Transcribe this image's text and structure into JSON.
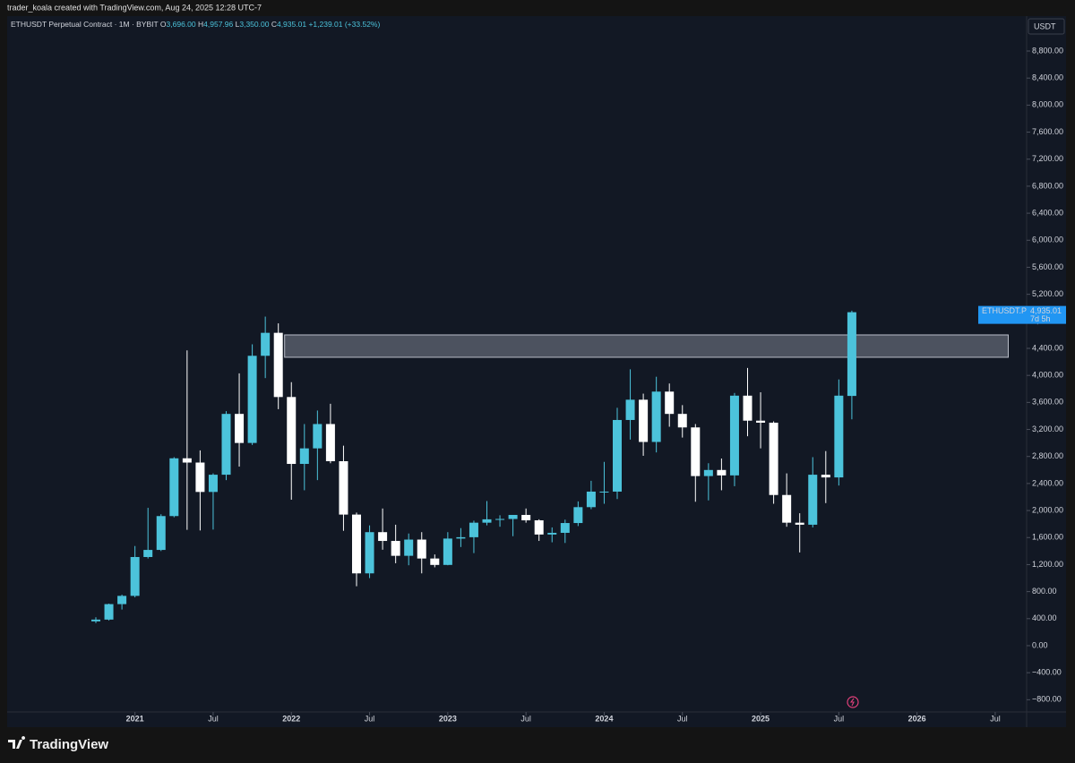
{
  "header": {
    "credit": "trader_koala created with TradingView.com, Aug 24, 2025 12:28 UTC-7"
  },
  "footer": {
    "brand": "TradingView"
  },
  "chart_data": {
    "type": "candlestick",
    "legend": {
      "symbol": "ETHUSDT Perpetual Contract · 1M · BYBIT",
      "o_key": "O",
      "o": "3,696.00",
      "h_key": "H",
      "h": "4,957.96",
      "l_key": "L",
      "l": "3,350.00",
      "c_key": "C",
      "c": "4,935.01",
      "change": "+1,239.01 (+33.52%)"
    },
    "y_unit": "USDT",
    "up_color": "#4cc3db",
    "down_color": "#ffffff",
    "x": [
      "2020-10",
      "2020-11",
      "2020-12",
      "2021-01",
      "2021-02",
      "2021-03",
      "2021-04",
      "2021-05",
      "2021-06",
      "2021-07",
      "2021-08",
      "2021-09",
      "2021-10",
      "2021-11",
      "2021-12",
      "2022-01",
      "2022-02",
      "2022-03",
      "2022-04",
      "2022-05",
      "2022-06",
      "2022-07",
      "2022-08",
      "2022-09",
      "2022-10",
      "2022-11",
      "2022-12",
      "2023-01",
      "2023-02",
      "2023-03",
      "2023-04",
      "2023-05",
      "2023-06",
      "2023-07",
      "2023-08",
      "2023-09",
      "2023-10",
      "2023-11",
      "2023-12",
      "2024-01",
      "2024-02",
      "2024-03",
      "2024-04",
      "2024-05",
      "2024-06",
      "2024-07",
      "2024-08",
      "2024-09",
      "2024-10",
      "2024-11",
      "2024-12",
      "2025-01",
      "2025-02",
      "2025-03",
      "2025-04",
      "2025-05",
      "2025-06",
      "2025-07",
      "2025-08"
    ],
    "open": [
      360,
      386,
      615,
      737,
      1312,
      1417,
      1918,
      2773,
      2710,
      2275,
      2530,
      3430,
      3000,
      4290,
      4630,
      3680,
      2690,
      2920,
      3280,
      2730,
      1940,
      1070,
      1680,
      1550,
      1330,
      1570,
      1290,
      1195,
      1585,
      1605,
      1820,
      1870,
      1875,
      1935,
      1855,
      1645,
      1670,
      1815,
      2050,
      2280,
      2280,
      3340,
      3640,
      3015,
      3760,
      3430,
      3230,
      2510,
      2600,
      2520,
      3700,
      3330,
      3300,
      2230,
      1820,
      1790,
      2530,
      2490,
      3696
    ],
    "high": [
      420,
      622,
      755,
      1475,
      2040,
      1945,
      2790,
      4370,
      2890,
      2550,
      3470,
      4030,
      4460,
      4870,
      4770,
      3900,
      3280,
      3480,
      3580,
      2960,
      1970,
      1780,
      2030,
      1790,
      1660,
      1680,
      1350,
      1680,
      1740,
      1850,
      2140,
      1930,
      1935,
      2030,
      1870,
      1750,
      1865,
      2135,
      2440,
      2720,
      3520,
      4090,
      3730,
      3980,
      3880,
      3560,
      3280,
      2700,
      2770,
      3740,
      4110,
      3750,
      3320,
      2550,
      1960,
      2790,
      2880,
      3940,
      4957.96
    ],
    "low": [
      335,
      373,
      535,
      715,
      1290,
      1400,
      1900,
      1715,
      1705,
      1718,
      2450,
      2650,
      2970,
      3960,
      3500,
      2160,
      2300,
      2450,
      2700,
      1700,
      880,
      1000,
      1420,
      1220,
      1190,
      1070,
      1160,
      1190,
      1460,
      1370,
      1780,
      1760,
      1620,
      1820,
      1550,
      1530,
      1520,
      1770,
      2020,
      2100,
      2170,
      3050,
      2810,
      2860,
      3240,
      3080,
      2130,
      2150,
      2300,
      2360,
      3100,
      2920,
      2100,
      1760,
      1380,
      1750,
      2110,
      2370,
      3350
    ],
    "close": [
      386,
      615,
      737,
      1312,
      1417,
      1918,
      2773,
      2710,
      2275,
      2530,
      3430,
      3000,
      4290,
      4630,
      3680,
      2690,
      2920,
      3280,
      2730,
      1940,
      1070,
      1680,
      1550,
      1330,
      1570,
      1290,
      1195,
      1585,
      1605,
      1820,
      1870,
      1875,
      1935,
      1855,
      1645,
      1670,
      1815,
      2050,
      2280,
      2280,
      3340,
      3640,
      3015,
      3760,
      3430,
      3230,
      2510,
      2600,
      2520,
      3700,
      3330,
      3300,
      2230,
      1820,
      1790,
      2530,
      2490,
      3700,
      4935.01
    ],
    "zone": {
      "low": 4268,
      "high": 4599,
      "start": "2021-12",
      "end": "2026-08"
    },
    "price_label": {
      "symbol": "ETHUSDT.P",
      "price": "4,935.01",
      "countdown": "7d 5h",
      "value": 4935.01
    },
    "ylim": [
      -981,
      9317
    ],
    "yticks": [
      {
        "value": -800,
        "label": "−800.00"
      },
      {
        "value": -400,
        "label": "−400.00"
      },
      {
        "value": 0,
        "label": "0.00"
      },
      {
        "value": 400,
        "label": "400.00"
      },
      {
        "value": 800,
        "label": "800.00"
      },
      {
        "value": 1200,
        "label": "1,200.00"
      },
      {
        "value": 1600,
        "label": "1,600.00"
      },
      {
        "value": 2000,
        "label": "2,000.00"
      },
      {
        "value": 2400,
        "label": "2,400.00"
      },
      {
        "value": 2800,
        "label": "2,800.00"
      },
      {
        "value": 3200,
        "label": "3,200.00"
      },
      {
        "value": 3600,
        "label": "3,600.00"
      },
      {
        "value": 4000,
        "label": "4,000.00"
      },
      {
        "value": 4400,
        "label": "4,400.00"
      },
      {
        "value": 4800,
        "label": "4,800.00"
      },
      {
        "value": 5200,
        "label": "5,200.00"
      },
      {
        "value": 5600,
        "label": "5,600.00"
      },
      {
        "value": 6000,
        "label": "6,000.00"
      },
      {
        "value": 6400,
        "label": "6,400.00"
      },
      {
        "value": 6800,
        "label": "6,800.00"
      },
      {
        "value": 7200,
        "label": "7,200.00"
      },
      {
        "value": 7600,
        "label": "7,600.00"
      },
      {
        "value": 8000,
        "label": "8,000.00"
      },
      {
        "value": 8400,
        "label": "8,400.00"
      },
      {
        "value": 8800,
        "label": "8,800.00"
      }
    ],
    "xticks": [
      {
        "value": "2021-01",
        "label": "2021"
      },
      {
        "value": "2021-07",
        "label": "Jul"
      },
      {
        "value": "2022-01",
        "label": "2022"
      },
      {
        "value": "2022-07",
        "label": "Jul"
      },
      {
        "value": "2023-01",
        "label": "2023"
      },
      {
        "value": "2023-07",
        "label": "Jul"
      },
      {
        "value": "2024-01",
        "label": "2024"
      },
      {
        "value": "2024-07",
        "label": "Jul"
      },
      {
        "value": "2025-01",
        "label": "2025"
      },
      {
        "value": "2025-07",
        "label": "Jul"
      },
      {
        "value": "2026-01",
        "label": "2026"
      },
      {
        "value": "2026-07",
        "label": "Jul"
      }
    ]
  }
}
